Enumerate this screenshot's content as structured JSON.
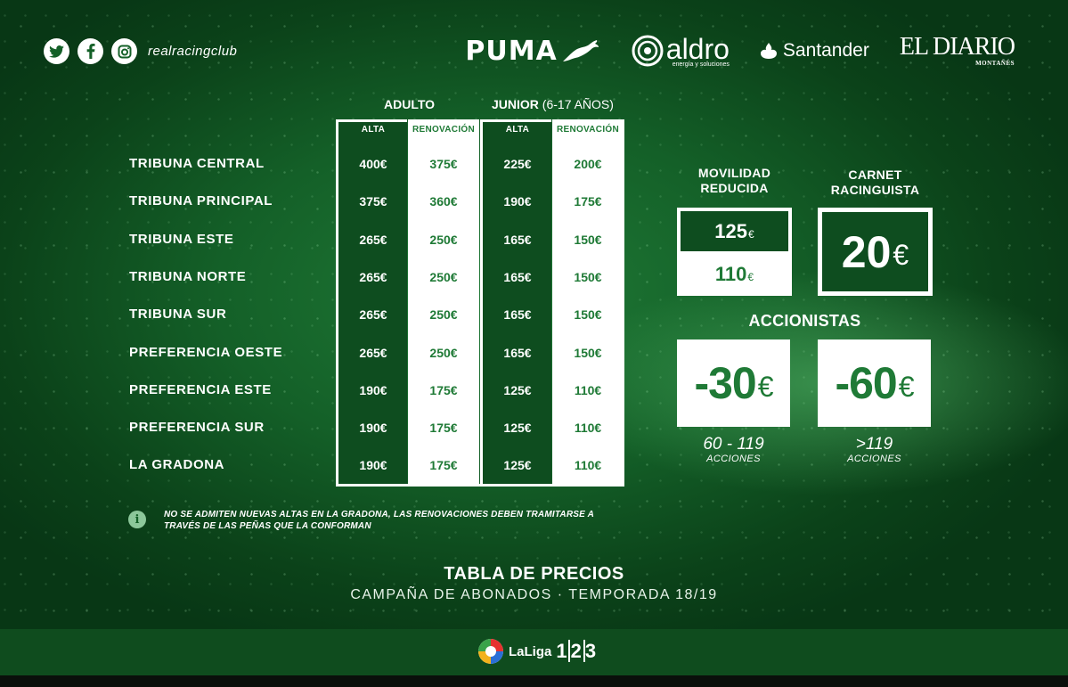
{
  "header": {
    "social_handle": "realracingclub",
    "sponsors": {
      "puma": "PUMA",
      "aldro": "aldro",
      "aldro_tagline": "energía y soluciones",
      "santander": "Santander",
      "diario": "EL DIARIO",
      "diario_sub": "MONTAÑÉS"
    }
  },
  "table": {
    "groups": {
      "adult": "ADULTO",
      "junior": "JUNIOR",
      "junior_note": "(6-17 AÑOS)"
    },
    "columns": [
      "ALTA",
      "RENOVACIÓN",
      "ALTA",
      "RENOVACIÓN"
    ],
    "rows": [
      {
        "label": "TRIBUNA CENTRAL",
        "values": [
          "400€",
          "375€",
          "225€",
          "200€"
        ]
      },
      {
        "label": "TRIBUNA PRINCIPAL",
        "values": [
          "375€",
          "360€",
          "190€",
          "175€"
        ]
      },
      {
        "label": "TRIBUNA ESTE",
        "values": [
          "265€",
          "250€",
          "165€",
          "150€"
        ]
      },
      {
        "label": "TRIBUNA NORTE",
        "values": [
          "265€",
          "250€",
          "165€",
          "150€"
        ]
      },
      {
        "label": "TRIBUNA SUR",
        "values": [
          "265€",
          "250€",
          "165€",
          "150€"
        ]
      },
      {
        "label": "PREFERENCIA OESTE",
        "values": [
          "265€",
          "250€",
          "165€",
          "150€"
        ]
      },
      {
        "label": "PREFERENCIA ESTE",
        "values": [
          "190€",
          "175€",
          "125€",
          "110€"
        ]
      },
      {
        "label": "PREFERENCIA SUR",
        "values": [
          "190€",
          "175€",
          "125€",
          "110€"
        ]
      },
      {
        "label": "LA GRADONA",
        "values": [
          "190€",
          "175€",
          "125€",
          "110€"
        ]
      }
    ]
  },
  "movilidad": {
    "title_1": "MOVILIDAD",
    "title_2": "REDUCIDA",
    "price_top": "125",
    "price_bottom": "110",
    "currency": "€"
  },
  "carnet": {
    "title_1": "CARNET",
    "title_2": "RACINGUISTA",
    "price": "20",
    "currency": "€"
  },
  "accionistas": {
    "title": "ACCIONISTAS",
    "items": [
      {
        "discount": "-30",
        "currency": "€",
        "range": "60 - 119",
        "unit": "ACCIONES"
      },
      {
        "discount": "-60",
        "currency": "€",
        "range": ">119",
        "unit": "ACCIONES"
      }
    ]
  },
  "note": {
    "icon": "info-icon",
    "text": "NO SE ADMITEN NUEVAS ALTAS EN LA GRADONA, LAS RENOVACIONES DEBEN TRAMITARSE A TRAVÉS DE LAS PEÑAS QUE LA CONFORMAN"
  },
  "footer": {
    "title": "TABLA DE PRECIOS",
    "subtitle": "CAMPAÑA DE ABONADOS · TEMPORADA 18/19",
    "league_name": "LaLiga",
    "league_num_1": "1",
    "league_num_2": "2",
    "league_num_3": "3"
  },
  "colors": {
    "green_dark": "#0e4d1f",
    "green_text": "#1f7a36",
    "background": "#146028"
  }
}
